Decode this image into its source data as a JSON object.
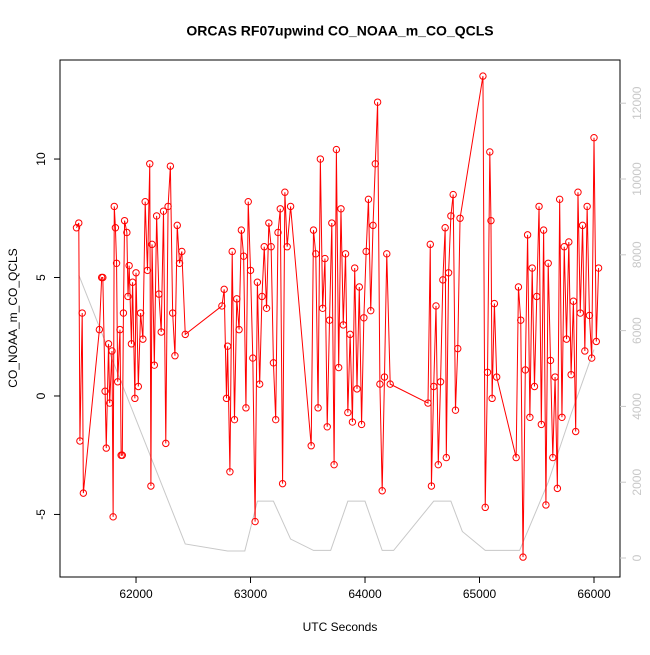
{
  "chart_data": {
    "type": "line",
    "title": "ORCAS RF07upwind CO_NOAA_m_CO_QCLS",
    "x_label": "UTC Seconds",
    "y_label": "CO_NOAA_m_CO_QCLS",
    "xlim": [
      61336,
      66227
    ],
    "xticks": [
      62000,
      63000,
      64000,
      65000,
      66000
    ],
    "ylim": [
      -7.64,
      14.18
    ],
    "yticks": [
      -5,
      0,
      5,
      10
    ],
    "y2lim": [
      -501,
      13140
    ],
    "y2ticks": [
      0,
      2000,
      4000,
      6000,
      8000,
      10000,
      12000
    ],
    "series": [
      {
        "color": "#ff0000",
        "markers": true,
        "x": [
          61480,
          61500,
          61510,
          61530,
          61540,
          61680,
          61700,
          61710,
          61730,
          61740,
          61760,
          61770,
          61790,
          61800,
          61810,
          61820,
          61830,
          61840,
          61860,
          61870,
          61880,
          61890,
          61900,
          61920,
          61930,
          61940,
          61960,
          61970,
          61990,
          62000,
          62020,
          62040,
          62060,
          62080,
          62100,
          62120,
          62130,
          62140,
          62160,
          62180,
          62200,
          62220,
          62240,
          62260,
          62280,
          62300,
          62320,
          62340,
          62360,
          62380,
          62400,
          62430,
          62750,
          62770,
          62790,
          62800,
          62820,
          62840,
          62860,
          62880,
          62900,
          62920,
          62940,
          62960,
          62980,
          63000,
          63020,
          63040,
          63060,
          63080,
          63100,
          63120,
          63140,
          63160,
          63180,
          63200,
          63220,
          63240,
          63260,
          63280,
          63300,
          63320,
          63350,
          63530,
          63550,
          63570,
          63590,
          63610,
          63630,
          63650,
          63670,
          63690,
          63710,
          63730,
          63750,
          63770,
          63790,
          63810,
          63830,
          63850,
          63870,
          63890,
          63910,
          63930,
          63950,
          63970,
          63990,
          64010,
          64030,
          64050,
          64070,
          64090,
          64110,
          64130,
          64150,
          64170,
          64190,
          64220,
          64550,
          64570,
          64580,
          64600,
          64620,
          64640,
          64660,
          64680,
          64700,
          64710,
          64730,
          64750,
          64770,
          64790,
          64810,
          64830,
          65030,
          65050,
          65070,
          65090,
          65100,
          65110,
          65130,
          65150,
          65320,
          65340,
          65360,
          65380,
          65400,
          65420,
          65440,
          65460,
          65480,
          65500,
          65520,
          65540,
          65560,
          65580,
          65600,
          65620,
          65640,
          65660,
          65680,
          65700,
          65720,
          65740,
          65760,
          65780,
          65800,
          65820,
          65840,
          65860,
          65880,
          65900,
          65920,
          65940,
          65960,
          65980,
          66000,
          66020,
          66040
        ],
        "values": [
          7.1,
          7.3,
          -1.9,
          3.5,
          -4.1,
          2.8,
          5.0,
          5.0,
          0.2,
          -2.2,
          2.2,
          -0.3,
          1.9,
          -5.1,
          8.0,
          7.1,
          5.6,
          0.6,
          2.8,
          -2.5,
          -2.5,
          3.5,
          7.4,
          6.9,
          4.2,
          5.5,
          2.2,
          4.8,
          -0.1,
          5.2,
          0.4,
          3.5,
          2.4,
          8.2,
          5.3,
          9.8,
          -3.8,
          6.4,
          1.3,
          7.6,
          4.3,
          2.7,
          7.8,
          -2.0,
          8.0,
          9.7,
          3.5,
          1.7,
          7.2,
          5.6,
          6.1,
          2.6,
          3.8,
          4.5,
          -0.1,
          2.1,
          -3.2,
          6.1,
          -1.0,
          4.1,
          2.8,
          7.0,
          5.9,
          -0.5,
          8.2,
          5.3,
          1.6,
          -5.3,
          4.8,
          0.5,
          4.2,
          6.3,
          3.7,
          7.3,
          6.3,
          1.4,
          -1.0,
          6.9,
          7.9,
          -3.7,
          8.6,
          6.3,
          8.0,
          -2.1,
          7.0,
          6.0,
          -0.5,
          10.0,
          3.7,
          5.8,
          -1.3,
          3.2,
          7.3,
          -2.9,
          10.4,
          1.2,
          7.9,
          3.0,
          6.0,
          -0.7,
          2.6,
          -1.1,
          5.4,
          0.3,
          4.6,
          -1.2,
          3.3,
          6.1,
          8.3,
          3.6,
          7.2,
          9.8,
          12.4,
          0.5,
          -4.0,
          0.8,
          6.0,
          0.5,
          -0.3,
          6.4,
          -3.8,
          0.4,
          3.8,
          -2.9,
          0.6,
          4.9,
          7.1,
          -2.6,
          5.2,
          7.6,
          8.5,
          -0.6,
          2.0,
          7.5,
          13.5,
          -4.7,
          1.0,
          10.3,
          7.4,
          -0.1,
          3.9,
          0.8,
          -2.6,
          4.6,
          3.2,
          -6.8,
          1.1,
          6.8,
          -0.9,
          5.4,
          0.4,
          4.2,
          8.0,
          -1.2,
          7.0,
          -4.6,
          5.6,
          1.5,
          -2.6,
          0.8,
          -3.9,
          8.3,
          -0.9,
          6.3,
          2.4,
          6.5,
          0.9,
          4.0,
          -1.5,
          8.6,
          3.5,
          7.2,
          1.9,
          8.0,
          3.4,
          1.6,
          10.9,
          2.3,
          5.4
        ]
      },
      {
        "color": "#c8c8c8",
        "axis": "y2",
        "markers": false,
        "x": [
          61500,
          62430,
          62800,
          62950,
          63060,
          63200,
          63350,
          63550,
          63700,
          63850,
          64000,
          64150,
          64250,
          64600,
          64750,
          64850,
          65050,
          65350,
          65600,
          65800,
          66000
        ],
        "values": [
          7470,
          370,
          185,
          185,
          1500,
          1500,
          500,
          200,
          200,
          1500,
          1500,
          200,
          200,
          1500,
          1500,
          700,
          200,
          200,
          2000,
          3800,
          5500
        ]
      }
    ]
  }
}
